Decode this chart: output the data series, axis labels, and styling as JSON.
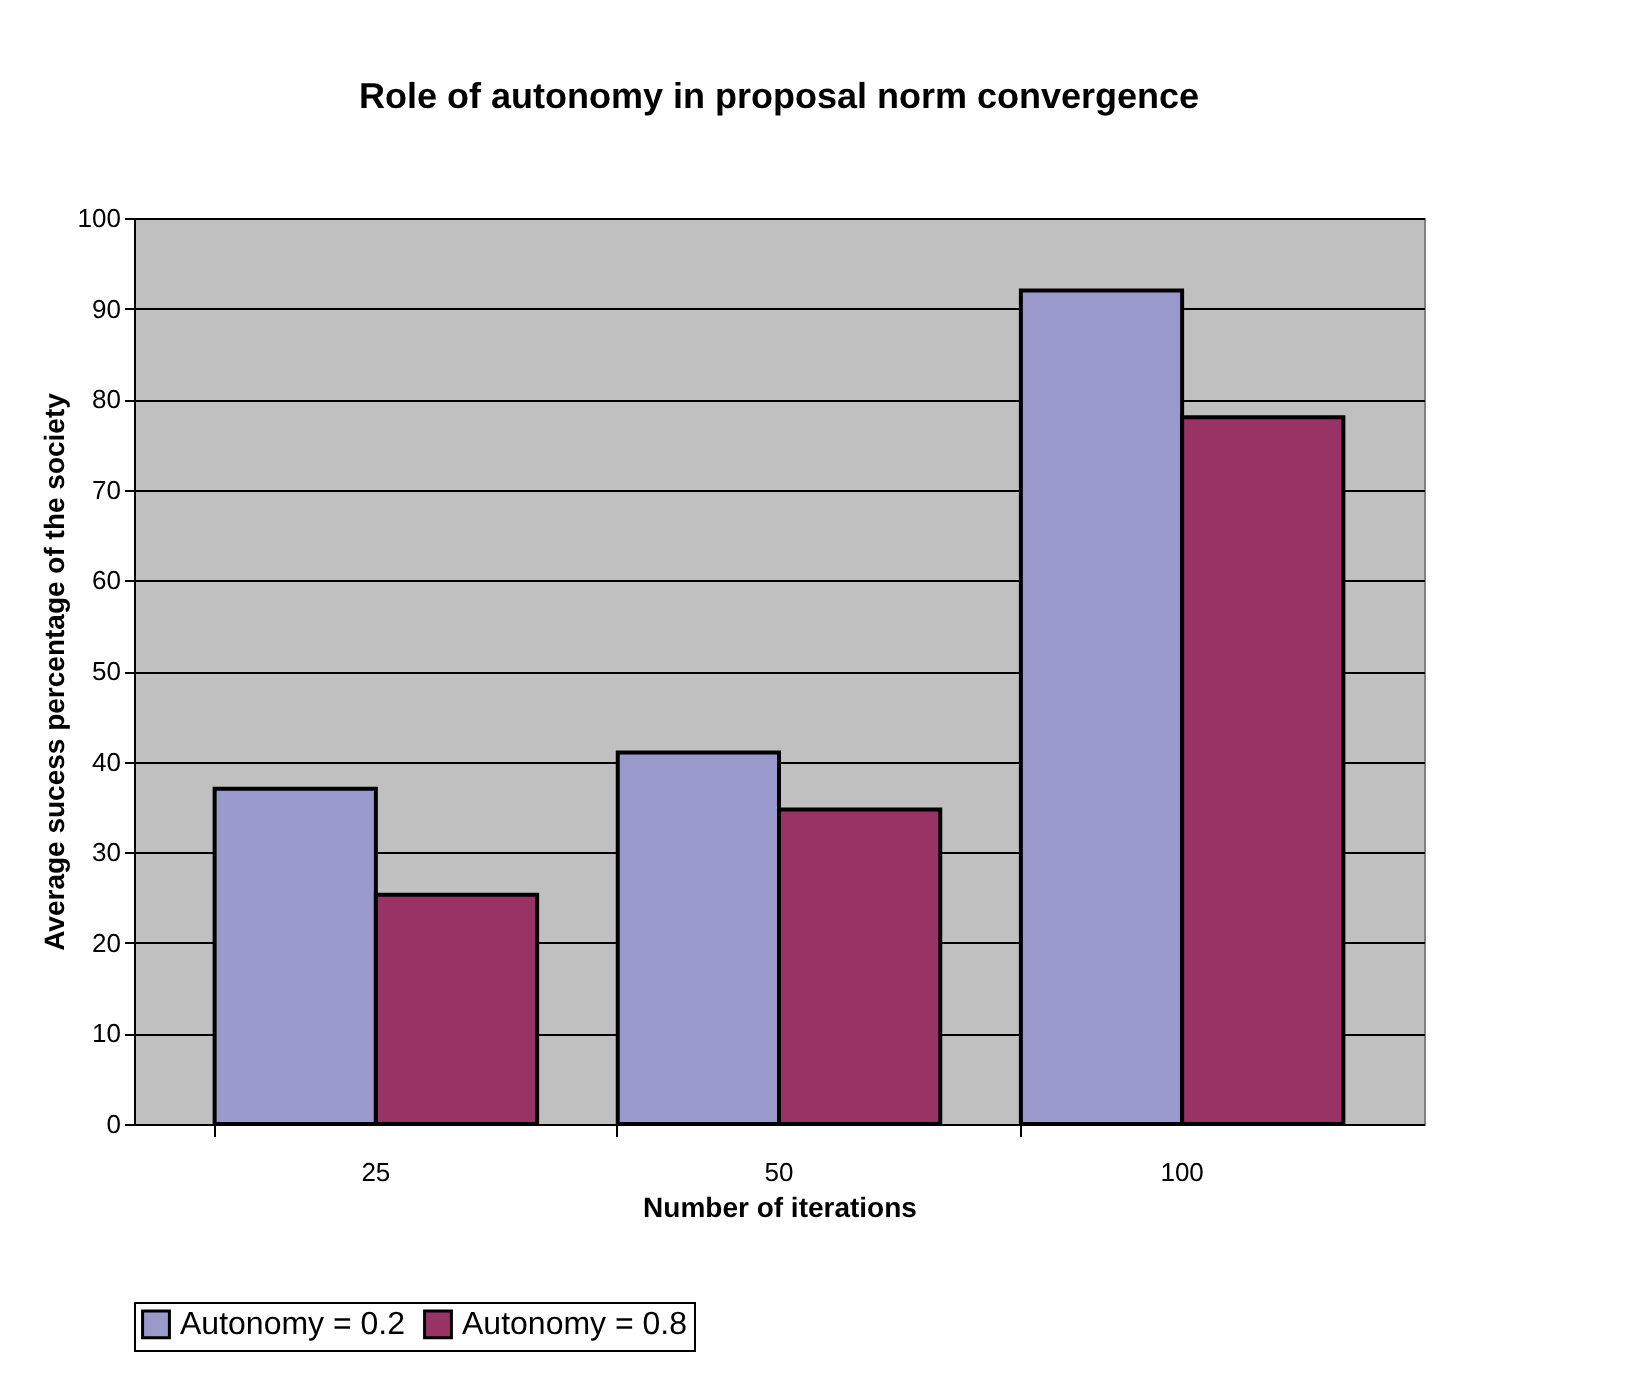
{
  "chart_data": {
    "type": "bar",
    "title": "Role of autonomy in proposal norm convergence",
    "xlabel": "Number of iterations",
    "ylabel": "Average sucess percentage of the society",
    "categories": [
      "25",
      "50",
      "100"
    ],
    "series": [
      {
        "name": "Autonomy = 0.2",
        "color": "#9999cc",
        "values": [
          37,
          41,
          92
        ]
      },
      {
        "name": "Autonomy = 0.8",
        "color": "#993366",
        "values": [
          25.3,
          34.7,
          78
        ]
      }
    ],
    "ylim": [
      0,
      100
    ],
    "yticks": [
      0,
      10,
      20,
      30,
      40,
      50,
      60,
      70,
      80,
      90,
      100
    ],
    "grid": "y",
    "legend": "bottom"
  }
}
